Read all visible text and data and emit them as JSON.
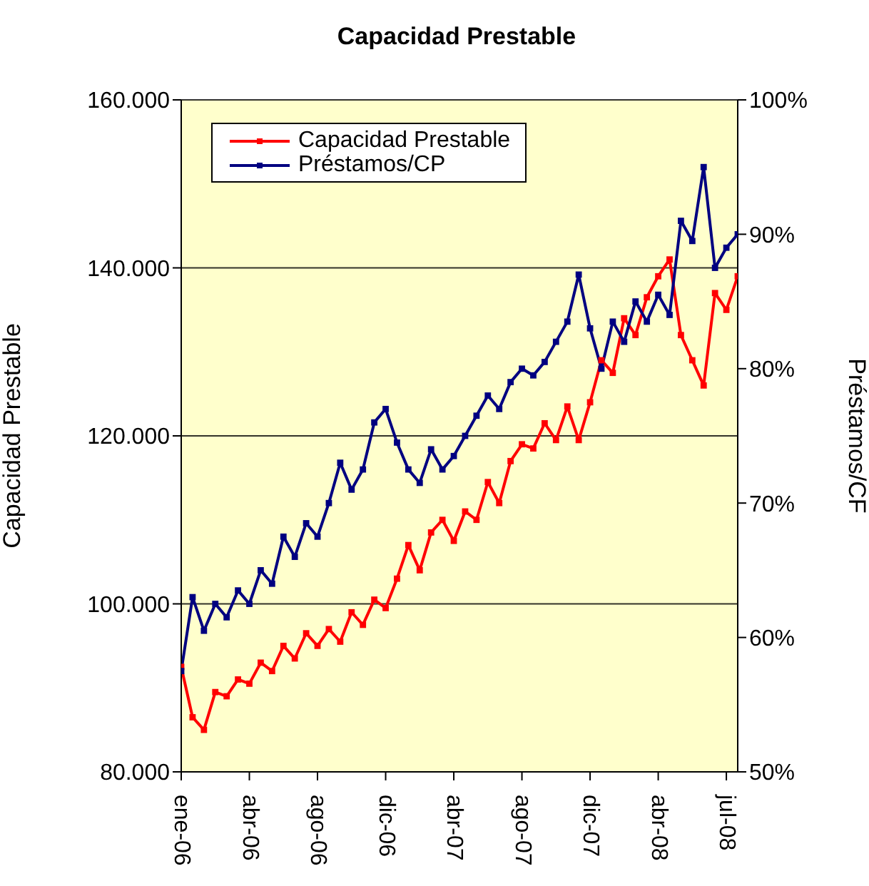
{
  "chart_data": {
    "type": "line",
    "title": "Capacidad Prestable",
    "ylabel": "Capacidad Prestable",
    "y2label": "Préstamos/CF",
    "categories": [
      "ene-06",
      null,
      null,
      null,
      null,
      null,
      "abr-06",
      null,
      null,
      null,
      null,
      null,
      "ago-06",
      null,
      null,
      null,
      null,
      null,
      "dic-06",
      null,
      null,
      null,
      null,
      null,
      "abr-07",
      null,
      null,
      null,
      null,
      null,
      "ago-07",
      null,
      null,
      null,
      null,
      null,
      "dic-07",
      null,
      null,
      null,
      null,
      null,
      "abr-08",
      null,
      null,
      null,
      null,
      null,
      "jul-08",
      null
    ],
    "series": [
      {
        "name": "Capacidad Prestable",
        "color": "#ff0000",
        "values": [
          92500,
          86500,
          85000,
          89500,
          89000,
          91000,
          90500,
          93000,
          92000,
          95000,
          93500,
          96500,
          95000,
          97000,
          95500,
          99000,
          97500,
          100500,
          99500,
          103000,
          107000,
          104000,
          108500,
          110000,
          107500,
          111000,
          110000,
          114500,
          112000,
          117000,
          119000,
          118500,
          121500,
          119500,
          123500,
          119500,
          124000,
          129000,
          127500,
          134000,
          132000,
          136500,
          139000,
          141000,
          132000,
          129000,
          126000,
          137000,
          135000,
          139000
        ]
      },
      {
        "name": "Préstamos/CP",
        "color": "#000080",
        "axis": "y2",
        "values": [
          57.5,
          63,
          60.5,
          62.5,
          61.5,
          63.5,
          62.5,
          65,
          64,
          67.5,
          66,
          68.5,
          67.5,
          70,
          73,
          71,
          72.5,
          76,
          77,
          74.5,
          72.5,
          71.5,
          74,
          72.5,
          73.5,
          75,
          76.5,
          78,
          77,
          79,
          80,
          79.5,
          80.5,
          82,
          83.5,
          87,
          83,
          80,
          83.5,
          82,
          85,
          83.5,
          85.5,
          84,
          91,
          89.5,
          95,
          87.5,
          89,
          90
        ]
      }
    ],
    "ylim": [
      80000,
      160000
    ],
    "yticks": [
      {
        "value": 80000,
        "label": "80.000"
      },
      {
        "value": 100000,
        "label": "100.000"
      },
      {
        "value": 120000,
        "label": "120.000"
      },
      {
        "value": 140000,
        "label": "140.000"
      },
      {
        "value": 160000,
        "label": "160.000"
      }
    ],
    "y2lim": [
      50,
      100
    ],
    "y2ticks": [
      {
        "value": 50,
        "label": "50%"
      },
      {
        "value": 60,
        "label": "60%"
      },
      {
        "value": 70,
        "label": "70%"
      },
      {
        "value": 80,
        "label": "80%"
      },
      {
        "value": 90,
        "label": "90%"
      },
      {
        "value": 100,
        "label": "100%"
      }
    ],
    "grid": "y",
    "legend": "top left",
    "marker": "square",
    "line_style": "solid"
  }
}
